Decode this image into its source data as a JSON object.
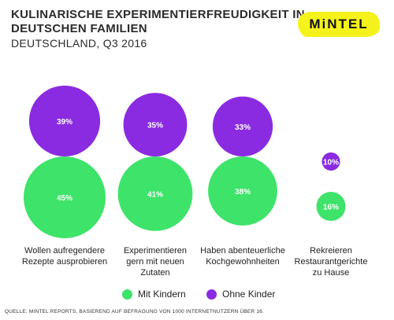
{
  "header": {
    "title": "KULINARISCHE EXPERIMENTIERFREUDIGKEIT IN DEUTSCHEN FAMILIEN",
    "subtitle": "DEUTSCHLAND, Q3 2016"
  },
  "logo": {
    "text": "MiNTEL",
    "color": "#f5f21b"
  },
  "chart_data": {
    "type": "bubble",
    "categories": [
      "Wollen aufregendere Rezepte ausprobieren",
      "Experimentieren gern mit neuen Zutaten",
      "Haben abenteuerliche Kochgewohnheiten",
      "Rekreieren Restaurantgerichte zu Hause"
    ],
    "series": [
      {
        "name": "Ohne Kinder",
        "color": "#8a2be2",
        "values": [
          39,
          35,
          33,
          10
        ],
        "labels": [
          "39%",
          "35%",
          "33%",
          "10%"
        ]
      },
      {
        "name": "Mit Kindern",
        "color": "#3ee36a",
        "values": [
          45,
          41,
          38,
          16
        ],
        "labels": [
          "45%",
          "41%",
          "38%",
          "16%"
        ]
      }
    ],
    "legend": "bottom"
  },
  "source": "QUELLE: MINTEL REPORTS, BASIEREND AUF BEFRAGUNG VON 1000 INTERNETNUTZERN ÜBER 16."
}
